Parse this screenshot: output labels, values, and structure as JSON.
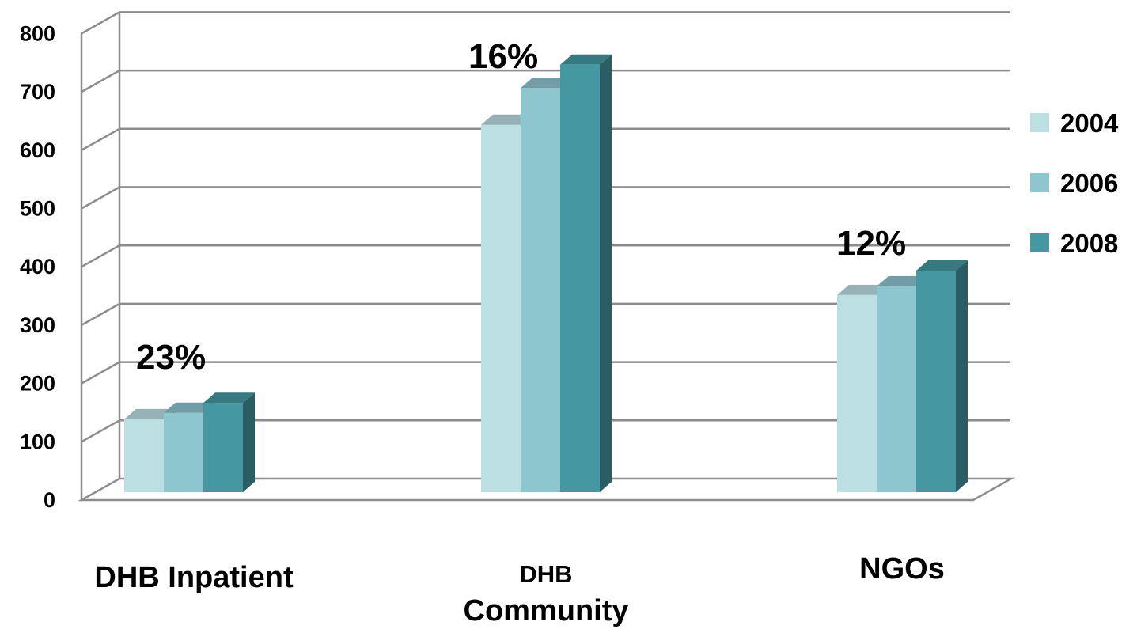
{
  "chart_data": {
    "type": "bar",
    "categories": [
      "DHB Inpatient",
      "DHB Community",
      "NGOs"
    ],
    "category_label_lines": [
      [
        "DHB Inpatient"
      ],
      [
        "DHB",
        "Community"
      ],
      [
        "NGOs"
      ]
    ],
    "series": [
      {
        "name": "2004",
        "color": "#bcdfe3",
        "values": [
          125,
          630,
          338
        ]
      },
      {
        "name": "2006",
        "color": "#8dc6cf",
        "values": [
          136,
          693,
          353
        ]
      },
      {
        "name": "2008",
        "color": "#4597a1",
        "values": [
          153,
          733,
          380
        ]
      }
    ],
    "annotations": [
      {
        "category": "DHB Inpatient",
        "text": "23%"
      },
      {
        "category": "DHB Community",
        "text": "16%"
      },
      {
        "category": "NGOs",
        "text": "12%"
      }
    ],
    "y_ticks": [
      0,
      100,
      200,
      300,
      400,
      500,
      600,
      700,
      800
    ],
    "ylim": [
      0,
      800
    ],
    "title": "",
    "xlabel": "",
    "ylabel": "",
    "grid": true,
    "legend_position": "right",
    "style": "3d-clustered-column"
  }
}
